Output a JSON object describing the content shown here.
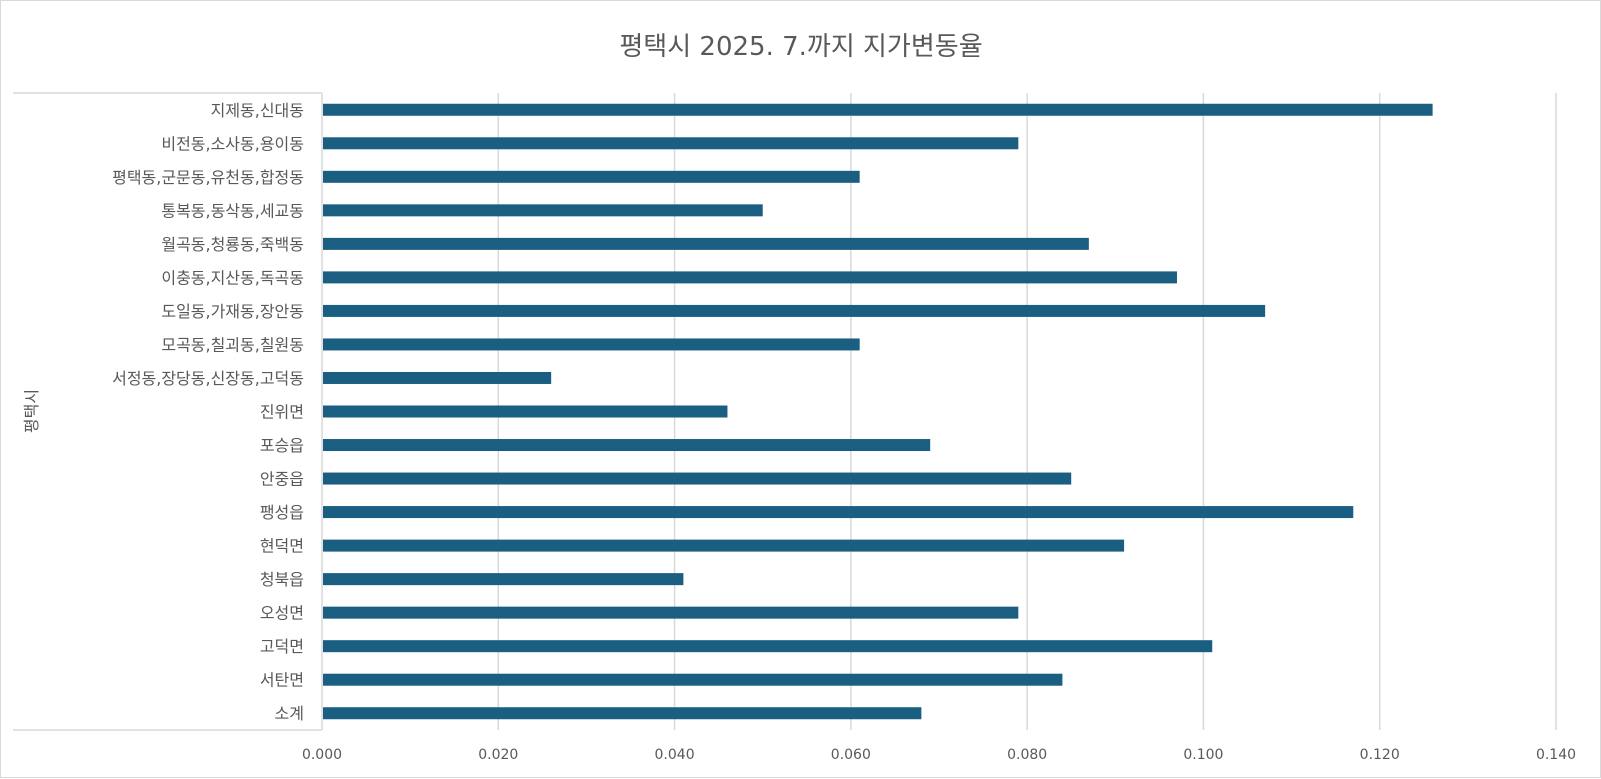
{
  "chart_data": {
    "type": "bar",
    "orientation": "horizontal",
    "title": "평택시 2025. 7.까지 지가변동율",
    "group_label": "평택시",
    "categories": [
      "지제동,신대동",
      "비전동,소사동,용이동",
      "평택동,군문동,유천동,합정동",
      "통복동,동삭동,세교동",
      "월곡동,청룡동,죽백동",
      "이충동,지산동,독곡동",
      "도일동,가재동,장안동",
      "모곡동,칠괴동,칠원동",
      "서정동,장당동,신장동,고덕동",
      "진위면",
      "포승읍",
      "안중읍",
      "팽성읍",
      "현덕면",
      "청북읍",
      "오성면",
      "고덕면",
      "서탄면",
      "소계"
    ],
    "values": [
      0.126,
      0.079,
      0.061,
      0.05,
      0.087,
      0.097,
      0.107,
      0.061,
      0.026,
      0.046,
      0.069,
      0.085,
      0.117,
      0.091,
      0.041,
      0.079,
      0.101,
      0.084,
      0.068
    ],
    "xlim": [
      0,
      0.14
    ],
    "x_ticks": [
      "0.000",
      "0.020",
      "0.040",
      "0.060",
      "0.080",
      "0.100",
      "0.120",
      "0.140"
    ],
    "grid": true,
    "legend": "none",
    "bar_color": "#1a5e82",
    "grid_color": "#d9d9d9",
    "text_color": "#595959"
  }
}
